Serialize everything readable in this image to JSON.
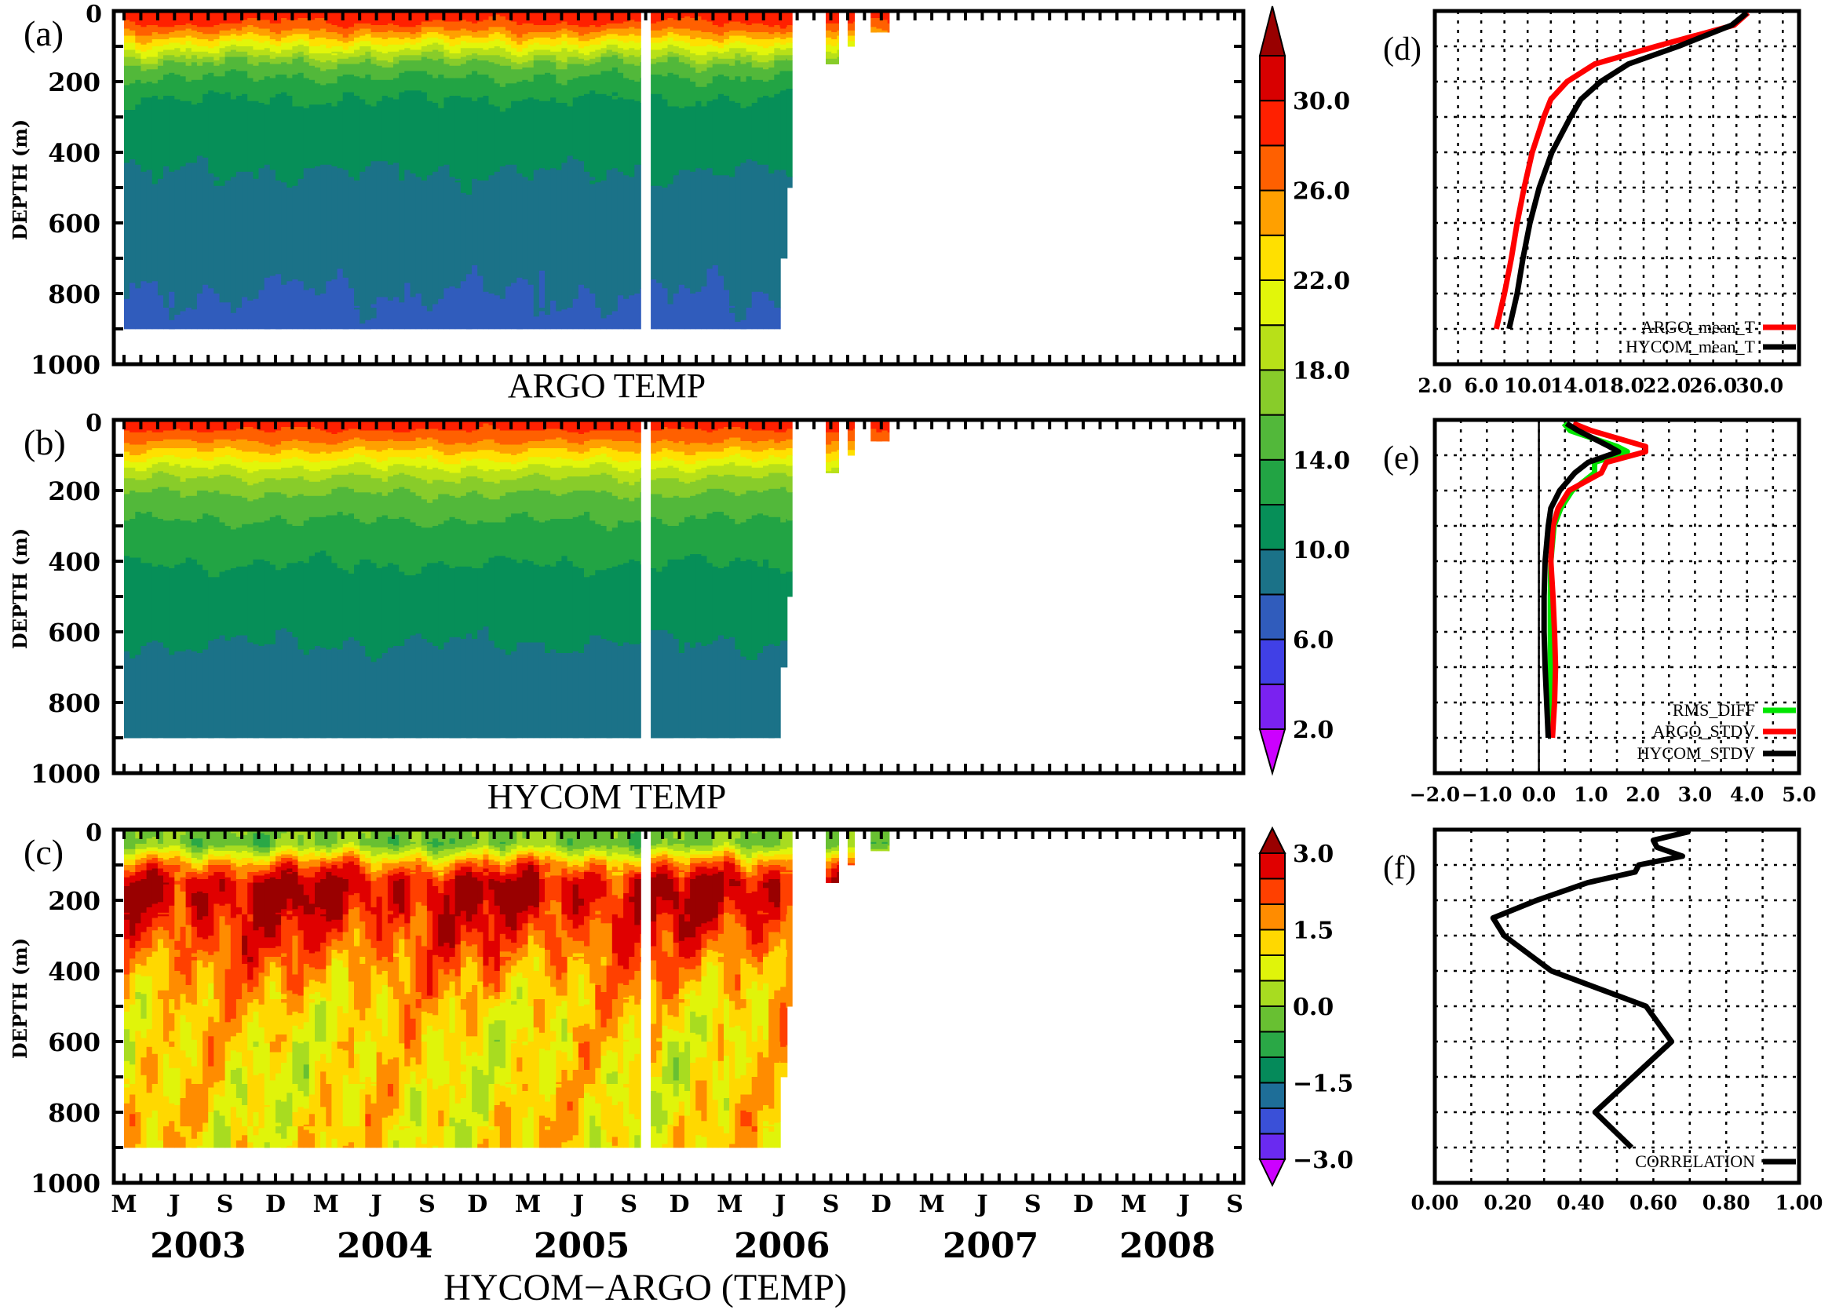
{
  "colorbars": {
    "temperature": {
      "levels": [
        2,
        4,
        6,
        8,
        10,
        12,
        14,
        16,
        18,
        20,
        22,
        24,
        26,
        28,
        30,
        32
      ],
      "tick_labels": [
        "2.0",
        "6.0",
        "10.0",
        "14.0",
        "18.0",
        "22.0",
        "26.0",
        "30.0"
      ],
      "tick_values": [
        2,
        6,
        10,
        14,
        18,
        22,
        26,
        30
      ],
      "colors": [
        "#7a22f0",
        "#4040e6",
        "#305cbc",
        "#1b7288",
        "#068f58",
        "#22a444",
        "#52b83a",
        "#88cc2a",
        "#b8e018",
        "#e2f60a",
        "#ffe000",
        "#ffa000",
        "#ff6000",
        "#ff2000",
        "#d80000"
      ],
      "over_color": "#990000",
      "under_color": "#cc00ff"
    },
    "difference": {
      "levels": [
        -3.0,
        -2.5,
        -2.0,
        -1.5,
        -1.0,
        -0.5,
        0.0,
        0.5,
        1.0,
        1.5,
        2.0,
        2.5,
        3.0
      ],
      "tick_labels": [
        "−3.0",
        "−1.5",
        "0.0",
        "1.5",
        "3.0"
      ],
      "tick_values": [
        -3.0,
        -1.5,
        0.0,
        1.5,
        3.0
      ],
      "colors": [
        "#6a2af0",
        "#3a50d8",
        "#1e6e98",
        "#058a5a",
        "#2aa846",
        "#68c032",
        "#a8dc20",
        "#e0f40a",
        "#ffd800",
        "#ff8c00",
        "#ff4000",
        "#e00000"
      ],
      "over_color": "#990000",
      "under_color": "#cc00ff"
    }
  },
  "chart_data": [
    {
      "type": "heatmap",
      "panel_label": "(a)",
      "title": "ARGO TEMP",
      "ylabel": "DEPTH (m)",
      "ylim": [
        1000,
        0
      ],
      "ytick_labels": [
        "0",
        "200",
        "400",
        "600",
        "800",
        "1000"
      ],
      "xlim": [
        "2003-02-13",
        "2008-09-16"
      ],
      "colorbar": "temperature",
      "field_profile": "ARGO_mean_T",
      "coverage": [
        {
          "start": "2003-03-01",
          "end": "2005-09-22",
          "max_depth": 900
        },
        {
          "start": "2005-10-10",
          "end": "2006-06-01",
          "max_depth": 900
        },
        {
          "start": "2006-06-01",
          "end": "2006-06-13",
          "max_depth": 700
        },
        {
          "start": "2006-06-13",
          "end": "2006-06-22",
          "max_depth": 500
        },
        {
          "start": "2006-08-22",
          "end": "2006-09-15",
          "max_depth": 150
        },
        {
          "start": "2006-10-01",
          "end": "2006-10-13",
          "max_depth": 100
        },
        {
          "start": "2006-11-12",
          "end": "2006-12-15",
          "max_depth": 60
        }
      ]
    },
    {
      "type": "heatmap",
      "panel_label": "(b)",
      "title": "HYCOM TEMP",
      "ylabel": "DEPTH (m)",
      "ylim": [
        1000,
        0
      ],
      "ytick_labels": [
        "0",
        "200",
        "400",
        "600",
        "800",
        "1000"
      ],
      "xlim": [
        "2003-02-13",
        "2008-09-16"
      ],
      "colorbar": "temperature",
      "field_profile": "HYCOM_mean_T",
      "coverage": [
        {
          "start": "2003-03-01",
          "end": "2005-09-22",
          "max_depth": 900
        },
        {
          "start": "2005-10-10",
          "end": "2006-06-01",
          "max_depth": 900
        },
        {
          "start": "2006-06-01",
          "end": "2006-06-13",
          "max_depth": 700
        },
        {
          "start": "2006-06-13",
          "end": "2006-06-22",
          "max_depth": 500
        },
        {
          "start": "2006-08-22",
          "end": "2006-09-15",
          "max_depth": 150
        },
        {
          "start": "2006-10-01",
          "end": "2006-10-13",
          "max_depth": 100
        },
        {
          "start": "2006-11-12",
          "end": "2006-12-15",
          "max_depth": 60
        }
      ]
    },
    {
      "type": "heatmap",
      "panel_label": "(c)",
      "title": "HYCOM−ARGO (TEMP)",
      "ylabel": "DEPTH (m)",
      "ylim": [
        1000,
        0
      ],
      "ytick_labels": [
        "0",
        "200",
        "400",
        "600",
        "800",
        "1000"
      ],
      "xlim": [
        "2003-02-13",
        "2008-09-16"
      ],
      "xtick_labels": [
        "M",
        "J",
        "S",
        "D",
        "M",
        "J",
        "S",
        "D",
        "M",
        "J",
        "S",
        "D",
        "M",
        "J",
        "S",
        "D",
        "M",
        "J",
        "S",
        "D",
        "M",
        "J",
        "S"
      ],
      "year_labels": [
        "2003",
        "2004",
        "2005",
        "2006",
        "2007",
        "2008"
      ],
      "colorbar": "difference",
      "field_profile": "HYCOM_mean_T minus ARGO_mean_T",
      "coverage": [
        {
          "start": "2003-03-01",
          "end": "2005-09-22",
          "max_depth": 900
        },
        {
          "start": "2005-10-10",
          "end": "2006-06-01",
          "max_depth": 900
        },
        {
          "start": "2006-06-01",
          "end": "2006-06-13",
          "max_depth": 700
        },
        {
          "start": "2006-06-13",
          "end": "2006-06-22",
          "max_depth": 500
        },
        {
          "start": "2006-08-22",
          "end": "2006-09-15",
          "max_depth": 150
        },
        {
          "start": "2006-10-01",
          "end": "2006-10-13",
          "max_depth": 100
        },
        {
          "start": "2006-11-12",
          "end": "2006-12-15",
          "max_depth": 60
        }
      ]
    },
    {
      "type": "line",
      "panel_label": "(d)",
      "xlim": [
        2.0,
        33.4
      ],
      "ylim": [
        1000,
        0
      ],
      "xtick_values": [
        2,
        6,
        10,
        14,
        18,
        22,
        26,
        30
      ],
      "xtick_labels": [
        "2.0",
        "6.0",
        "10.0",
        "14.0",
        "18.0",
        "22.0",
        "26.0",
        "30.0"
      ],
      "grid": true,
      "legend": "bottom-right",
      "depth_m": [
        5,
        40,
        100,
        150,
        200,
        250,
        300,
        400,
        500,
        600,
        700,
        800,
        900
      ],
      "series": [
        {
          "name": "ARGO_mean_T",
          "color": "#ff0000",
          "values": [
            29.0,
            27.8,
            21.1,
            15.8,
            13.4,
            12.0,
            11.4,
            10.4,
            9.7,
            9.1,
            8.6,
            8.0,
            7.3
          ]
        },
        {
          "name": "HYCOM_mean_T",
          "color": "#000000",
          "values": [
            28.9,
            27.6,
            23.0,
            18.7,
            16.3,
            14.6,
            13.7,
            12.1,
            11.0,
            10.2,
            9.6,
            9.1,
            8.4
          ]
        }
      ]
    },
    {
      "type": "line",
      "panel_label": "(e)",
      "xlim": [
        -2.0,
        5.0
      ],
      "ylim": [
        1000,
        0
      ],
      "xtick_values": [
        -2,
        -1,
        0,
        1,
        2,
        3,
        4,
        5
      ],
      "xtick_labels": [
        "−2.0",
        "−1.0",
        "0.0",
        "1.0",
        "2.0",
        "3.0",
        "4.0",
        "5.0"
      ],
      "grid": true,
      "legend": "bottom-right",
      "depth_m": [
        10,
        30,
        75,
        90,
        120,
        150,
        200,
        250,
        300,
        400,
        500,
        600,
        700,
        800,
        900
      ],
      "series": [
        {
          "name": "RMS_DIFF",
          "color": "#00e600",
          "values": [
            0.48,
            0.6,
            1.5,
            1.7,
            1.07,
            1.07,
            0.64,
            0.42,
            0.29,
            0.23,
            0.22,
            0.22,
            0.22,
            0.21,
            0.18
          ]
        },
        {
          "name": "ARGO_STDV",
          "color": "#ff0000",
          "values": [
            0.66,
            1.0,
            2.05,
            2.05,
            1.3,
            1.2,
            0.58,
            0.37,
            0.27,
            0.23,
            0.27,
            0.3,
            0.32,
            0.3,
            0.26
          ]
        },
        {
          "name": "HYCOM_STDV",
          "color": "#000000",
          "values": [
            0.53,
            0.75,
            1.35,
            1.53,
            0.95,
            0.69,
            0.4,
            0.23,
            0.18,
            0.12,
            0.1,
            0.1,
            0.12,
            0.15,
            0.18
          ]
        }
      ]
    },
    {
      "type": "line",
      "panel_label": "(f)",
      "xlim": [
        0.0,
        1.0
      ],
      "ylim": [
        1000,
        0
      ],
      "xtick_values": [
        0,
        0.2,
        0.4,
        0.6,
        0.8,
        1.0
      ],
      "xtick_labels": [
        "0.00",
        "0.20",
        "0.40",
        "0.60",
        "0.80",
        "1.00"
      ],
      "grid": true,
      "legend": "bottom-right",
      "depth_m": [
        5,
        10,
        30,
        50,
        75,
        100,
        120,
        150,
        200,
        250,
        300,
        400,
        500,
        600,
        700,
        800,
        900
      ],
      "series": [
        {
          "name": "CORRELATION",
          "color": "#000000",
          "values": [
            0.7,
            0.68,
            0.6,
            0.61,
            0.68,
            0.56,
            0.55,
            0.42,
            0.28,
            0.16,
            0.19,
            0.32,
            0.58,
            0.65,
            0.545,
            0.44,
            0.54
          ]
        }
      ]
    }
  ]
}
